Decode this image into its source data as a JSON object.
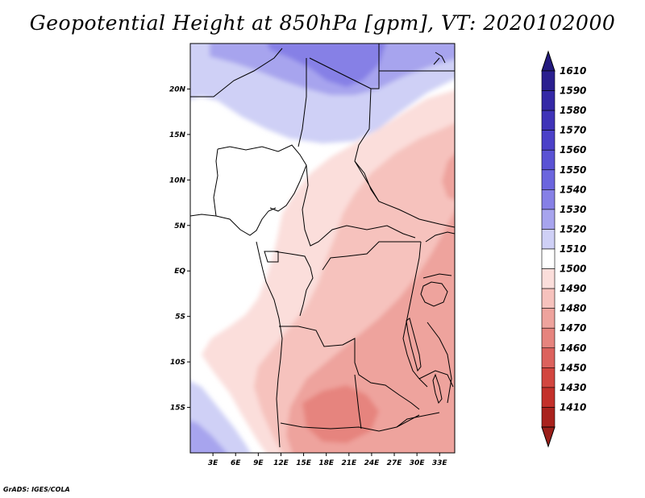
{
  "title": "Geopotential Height at 850hPa [gpm], VT: 2020102000",
  "credit": "GrADS: IGES/COLA",
  "map": {
    "variable": "Geopotential Height",
    "level": "850hPa",
    "units": "gpm",
    "valid_time": "2020102000",
    "extent": {
      "lon_min": 0,
      "lon_max": 35,
      "lat_min": -20,
      "lat_max": 25
    },
    "lat_labels": [
      {
        "lat": 20,
        "text": "20N"
      },
      {
        "lat": 15,
        "text": "15N"
      },
      {
        "lat": 10,
        "text": "10N"
      },
      {
        "lat": 5,
        "text": "5N"
      },
      {
        "lat": 0,
        "text": "EQ"
      },
      {
        "lat": -5,
        "text": "5S"
      },
      {
        "lat": -10,
        "text": "10S"
      },
      {
        "lat": -15,
        "text": "15S"
      }
    ],
    "lon_labels": [
      {
        "lon": 3,
        "text": "3E"
      },
      {
        "lon": 6,
        "text": "6E"
      },
      {
        "lon": 9,
        "text": "9E"
      },
      {
        "lon": 12,
        "text": "12E"
      },
      {
        "lon": 15,
        "text": "15E"
      },
      {
        "lon": 18,
        "text": "18E"
      },
      {
        "lon": 21,
        "text": "21E"
      },
      {
        "lon": 24,
        "text": "24E"
      },
      {
        "lon": 27,
        "text": "27E"
      },
      {
        "lon": 30,
        "text": "30E"
      },
      {
        "lon": 33,
        "text": "33E"
      }
    ]
  },
  "colorbar": {
    "levels": [
      {
        "value": "1610",
        "color": "#2a1f8f"
      },
      {
        "value": "1590",
        "color": "#3428a6"
      },
      {
        "value": "1580",
        "color": "#3f33b8"
      },
      {
        "value": "1570",
        "color": "#4b40c8"
      },
      {
        "value": "1560",
        "color": "#5a52d4"
      },
      {
        "value": "1550",
        "color": "#6b65de"
      },
      {
        "value": "1540",
        "color": "#8680e6"
      },
      {
        "value": "1530",
        "color": "#a7a4ee"
      },
      {
        "value": "1520",
        "color": "#cfd0f6"
      },
      {
        "value": "1510",
        "color": "#ffffff"
      },
      {
        "value": "1500",
        "color": "#fbdedb"
      },
      {
        "value": "1490",
        "color": "#f6c2bd"
      },
      {
        "value": "1480",
        "color": "#eea39d"
      },
      {
        "value": "1470",
        "color": "#e6847e"
      },
      {
        "value": "1460",
        "color": "#dc625d"
      },
      {
        "value": "1450",
        "color": "#d2463f"
      },
      {
        "value": "1430",
        "color": "#c3302a"
      },
      {
        "value": "1410",
        "color": "#a9221d"
      }
    ],
    "triangle_top_color": "#231a7e",
    "triangle_bottom_color": "#9b1f19"
  },
  "field_colors": {
    "band_1530": "#a7a4ee",
    "band_1520": "#cfd0f6",
    "band_1510": "#ffffff",
    "band_1500": "#fbdedb",
    "band_1490": "#f6c2bd",
    "band_1480": "#eea39d",
    "band_1470": "#e6847e",
    "band_1540": "#8680e6"
  }
}
